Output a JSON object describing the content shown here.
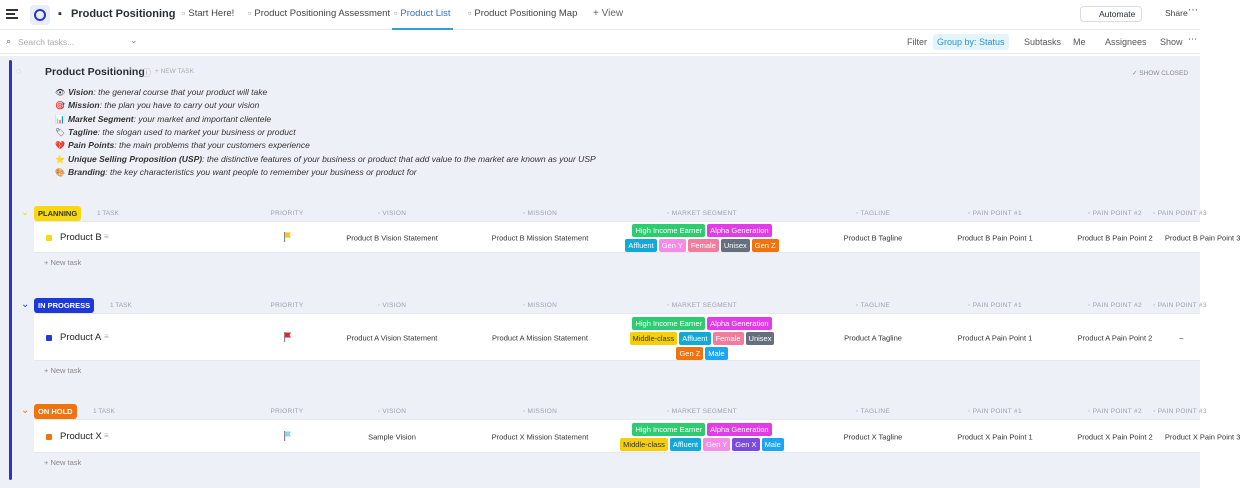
{
  "topbar": {
    "title": "Product Positioning",
    "tabs": [
      "Start Here!",
      "Product Positioning Assessment",
      "Product List",
      "Product Positioning Map"
    ],
    "active_tab": 2,
    "add_view": "View",
    "automate": "Automate",
    "share": "Share"
  },
  "toolbar": {
    "search": "Search tasks...",
    "filter": "Filter",
    "group_by": "Group by: Status",
    "subtasks": "Subtasks",
    "me": "Me",
    "assignees": "Assignees",
    "show": "Show"
  },
  "list": {
    "title": "Product Positioning",
    "new_task": "+ NEW TASK",
    "show_closed": "SHOW CLOSED",
    "description": [
      {
        "icon": "👁",
        "term": "Vision",
        "text": ": the general course that your product will take"
      },
      {
        "icon": "🎯",
        "term": "Mission",
        "text": ": the plan you have to carry out your vision"
      },
      {
        "icon": "📊",
        "term": "Market Segment",
        "text": ": your market and important clientele"
      },
      {
        "icon": "🏷",
        "term": "Tagline",
        "text": ": the slogan used to market your business or product"
      },
      {
        "icon": "💔",
        "term": "Pain Points",
        "text": ": the main problems that your customers experience"
      },
      {
        "icon": "⭐",
        "term": "Unique Selling Proposition (USP)",
        "text": ": the distinctive features of your business or product that add value to the market are known as your USP"
      },
      {
        "icon": "🎨",
        "term": "Branding",
        "text": ": the key characteristics you want people to remember your business or product for"
      }
    ],
    "columns": [
      "PRIORITY",
      "VISION",
      "MISSION",
      "MARKET SEGMENT",
      "TAGLINE",
      "PAIN POINT #1",
      "PAIN POINT #2",
      "PAIN POINT #3"
    ],
    "new_task_row": "+ New task"
  },
  "tag_colors": {
    "High Income Earner": "#2ecc71",
    "Alpha Generation": "#e13ce8",
    "Affluent": "#12a9d6",
    "Gen Y": "#f48be6",
    "Female": "#f17d9e",
    "Unisex": "#656f7d",
    "Gen Z": "#f0730d",
    "Middle-class": "#f5cf0a",
    "Male": "#1fa5f0",
    "Gen X": "#7c4ae0"
  },
  "groups": [
    {
      "status": "PLANNING",
      "count": "1 TASK",
      "color": "#f8d90f",
      "text_color": "#333333",
      "tasks": [
        {
          "name": "Product B",
          "priority_color": "#f5c518",
          "vision": "Product B Vision Statement",
          "mission": "Product B Mission Statement",
          "segments": [
            "High Income Earner",
            "Alpha Generation",
            "Affluent",
            "Gen Y",
            "Female",
            "Unisex",
            "Gen Z"
          ],
          "tagline": "Product B Tagline",
          "pains": [
            "Product B Pain Point 1",
            "Product B Pain Point 2",
            "Product B Pain Point 3"
          ]
        }
      ]
    },
    {
      "status": "IN PROGRESS",
      "count": "1 TASK",
      "color": "#1e3ad6",
      "text_color": "#ffffff",
      "tasks": [
        {
          "name": "Product A",
          "priority_color": "#e5252a",
          "vision": "Product A Vision Statement",
          "mission": "Product A Mission Statement",
          "segments": [
            "High Income Earner",
            "Alpha Generation",
            "Middle-class",
            "Affluent",
            "Female",
            "Unisex",
            "Gen Z",
            "Male"
          ],
          "tagline": "Product A Tagline",
          "pains": [
            "Product A Pain Point 1",
            "Product A Pain Point 2",
            "–"
          ]
        }
      ]
    },
    {
      "status": "ON HOLD",
      "count": "1 TASK",
      "color": "#f0730d",
      "text_color": "#ffffff",
      "tasks": [
        {
          "name": "Product X",
          "priority_color": "#8fd3f4",
          "vision": "Sample Vision",
          "mission": "Product X Mission Statement",
          "segments": [
            "High Income Earner",
            "Alpha Generation",
            "Middle-class",
            "Affluent",
            "Gen Y",
            "Gen X",
            "Male"
          ],
          "tagline": "Product X Tagline",
          "pains": [
            "Product X Pain Point 1",
            "Product X Pain Point 2",
            "Product X Pain Point 3"
          ]
        }
      ]
    }
  ]
}
